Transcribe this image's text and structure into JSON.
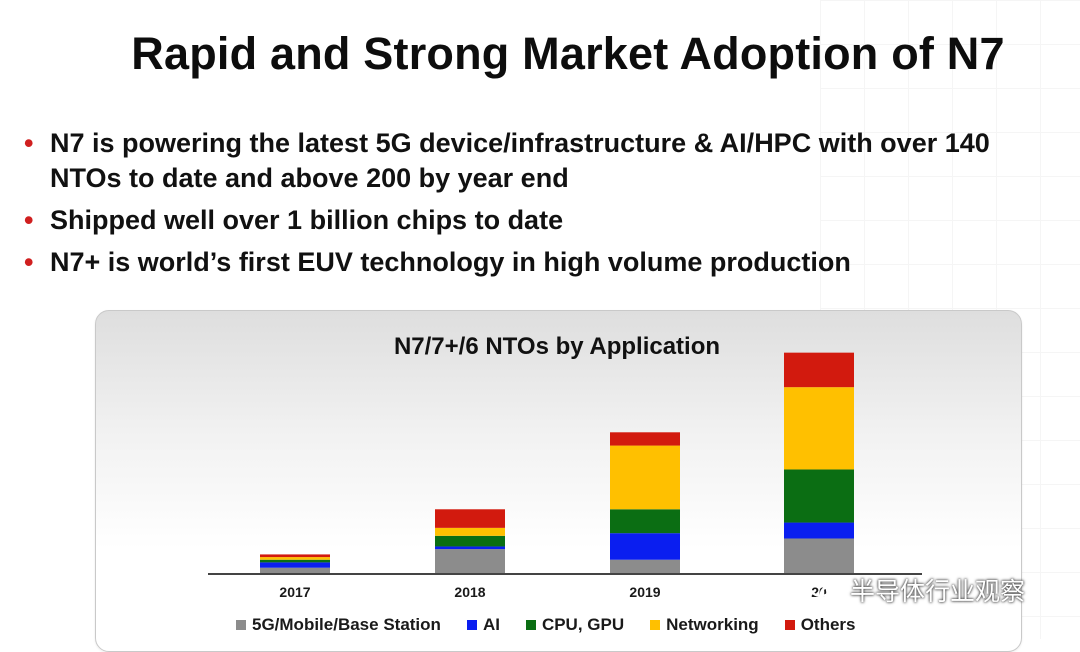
{
  "slide": {
    "title": "Rapid and Strong Market Adoption of N7",
    "bullets": [
      "N7 is powering the latest 5G device/infrastructure & AI/HPC with over 140 NTOs to date and above 200 by year end",
      "Shipped well over 1 billion chips to date",
      "N7+ is world’s first EUV technology in high volume production"
    ],
    "bullet_marker": "•"
  },
  "chart_data": {
    "type": "bar",
    "stacked": true,
    "title": "N7/7+/6 NTOs by Application",
    "categories": [
      "2017",
      "2018",
      "2019",
      "20"
    ],
    "series": [
      {
        "name": "5G/Mobile/Base Station",
        "color": "#8c8c8c",
        "values": [
          2,
          9,
          5,
          13
        ]
      },
      {
        "name": "AI",
        "color": "#0a1ef0",
        "values": [
          2,
          1,
          10,
          6
        ]
      },
      {
        "name": "CPU, GPU",
        "color": "#0b6e13",
        "values": [
          1,
          4,
          9,
          20
        ]
      },
      {
        "name": "Networking",
        "color": "#ffc000",
        "values": [
          1,
          3,
          24,
          31
        ]
      },
      {
        "name": "Others",
        "color": "#d21a0e",
        "values": [
          1,
          7,
          5,
          13
        ]
      }
    ],
    "ylim": [
      0,
      84
    ],
    "grid": false,
    "legend_position": "bottom"
  },
  "watermark": {
    "text": "半导体行业观察"
  }
}
